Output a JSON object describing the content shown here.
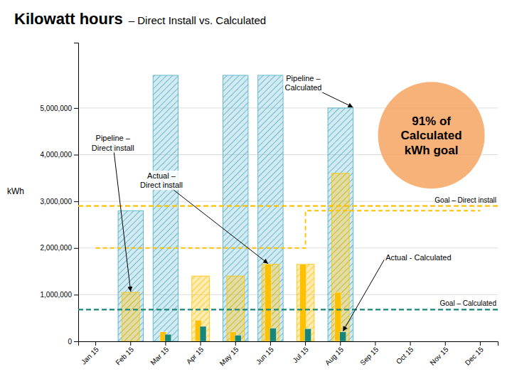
{
  "chart_data": {
    "type": "bar",
    "title": "Kilowatt hours",
    "subtitle": "– Direct Install vs. Calculated",
    "y_label": "kWh",
    "categories": [
      "Jan 15",
      "Feb 15",
      "Mar 15",
      "Apr 15",
      "May 15",
      "Jun 15",
      "Jul 15",
      "Aug 15",
      "Sep 15",
      "Oct 15",
      "Nov 15",
      "Dec 15"
    ],
    "series": [
      {
        "name": "Pipeline –\nCalculated",
        "color": "#4BACC6",
        "values": [
          0,
          2800000,
          5700000,
          0,
          5700000,
          5700000,
          0,
          5000000,
          0,
          0,
          0,
          0
        ]
      },
      {
        "name": "Pipeline –\nDirect install",
        "color": "#FFC000",
        "values": [
          0,
          1050000,
          0,
          1400000,
          1400000,
          1650000,
          1650000,
          3600000,
          0,
          0,
          0,
          0
        ]
      },
      {
        "name": "Actual –\nDirect install",
        "color": "#FFC000",
        "values": [
          0,
          0,
          200000,
          450000,
          200000,
          1650000,
          1650000,
          1050000,
          0,
          0,
          0,
          0
        ]
      },
      {
        "name": "Actual - Calculated",
        "color": "#17867A",
        "values": [
          0,
          0,
          150000,
          320000,
          130000,
          280000,
          270000,
          200000,
          0,
          0,
          0,
          0
        ]
      },
      {
        "type": "step",
        "line_style": "dashed",
        "color": "#FFC000",
        "values": [
          2000000,
          2000000,
          2000000,
          2000000,
          2000000,
          2000000,
          2000000,
          2800000,
          2800000,
          2800000,
          2800000,
          2800000
        ]
      }
    ],
    "goals": [
      {
        "label": "Goal – Direct install",
        "value": 2900000,
        "color": "#FFC000"
      },
      {
        "label": "Goal – Calculated",
        "value": 680000,
        "color": "#17867A"
      }
    ],
    "annotations": [
      {
        "text": "91% of\nCalculated\nkWh goal",
        "color": "#F4A460"
      }
    ],
    "ylim": [
      0,
      6400000
    ],
    "yticks": [
      0,
      {
        "value": 1000000,
        "label": "1,000,000"
      },
      {
        "value": 2000000,
        "label": "2,000,000"
      },
      {
        "value": 3000000,
        "label": "3,000,000"
      },
      {
        "value": 4000000,
        "label": "4,000,000"
      },
      {
        "value": 5000000,
        "label": "5,000,000"
      }
    ],
    "grid": true
  }
}
